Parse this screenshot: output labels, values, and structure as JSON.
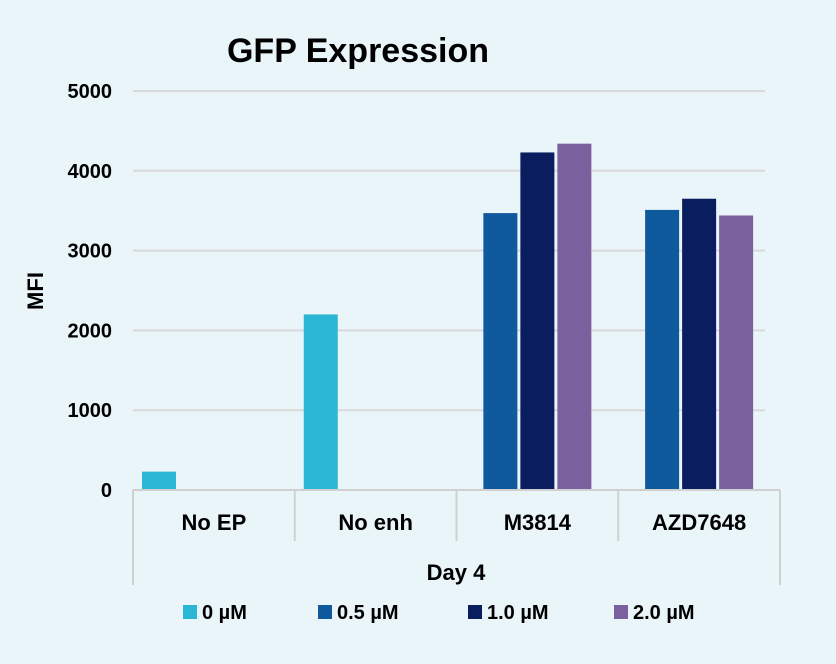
{
  "chart_data": {
    "type": "bar",
    "title": "GFP Expression",
    "ylabel": "MFI",
    "xlabel": "Day 4",
    "ylim": [
      0,
      5000
    ],
    "yticks": [
      0,
      1000,
      2000,
      3000,
      4000,
      5000
    ],
    "grid": true,
    "legend_position": "bottom",
    "categories": [
      "No EP",
      "No enh",
      "M3814",
      "AZD7648"
    ],
    "series": [
      {
        "name": "0 µM",
        "color": "#2bb6d6",
        "values": [
          230,
          2200,
          null,
          null
        ]
      },
      {
        "name": "0.5 µM",
        "color": "#0f5a9c",
        "values": [
          null,
          null,
          3470,
          3510
        ]
      },
      {
        "name": "1.0 µM",
        "color": "#0a1d5e",
        "values": [
          null,
          null,
          4230,
          3650
        ]
      },
      {
        "name": "2.0 µM",
        "color": "#7b609e",
        "values": [
          null,
          null,
          4340,
          3440
        ]
      }
    ]
  }
}
